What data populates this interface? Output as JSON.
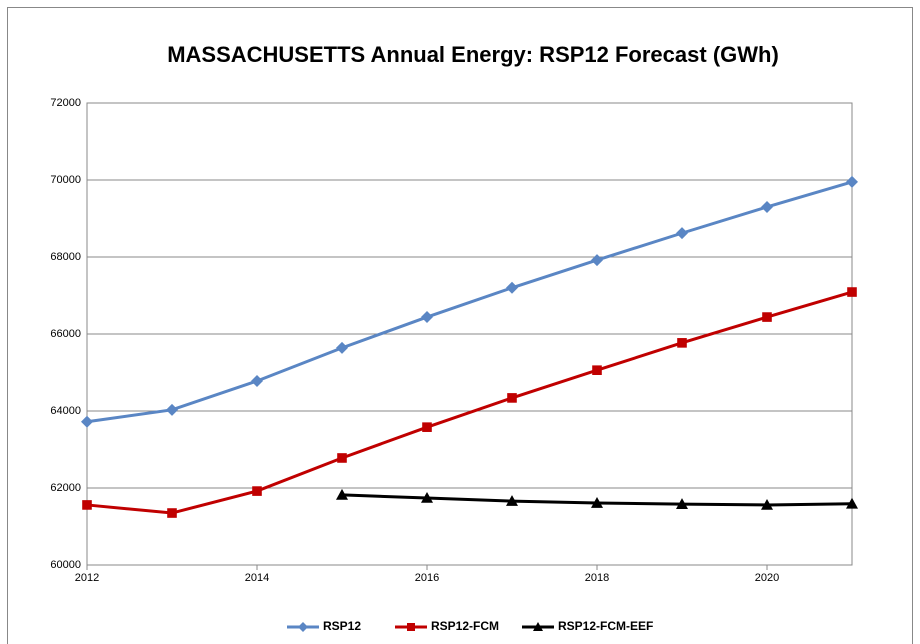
{
  "chart_data": {
    "type": "line",
    "title": "MASSACHUSETTS Annual Energy: RSP12 Forecast (GWh)",
    "x": [
      2012,
      2013,
      2014,
      2015,
      2016,
      2017,
      2018,
      2019,
      2020,
      2021
    ],
    "series": [
      {
        "name": "RSP12",
        "color": "#5a86c4",
        "marker": "diamond",
        "values": [
          63720,
          64030,
          64780,
          65640,
          66440,
          67200,
          67920,
          68620,
          69300,
          69950
        ]
      },
      {
        "name": "RSP12-FCM",
        "color": "#c00000",
        "marker": "square",
        "values": [
          61560,
          61350,
          61920,
          62780,
          63580,
          64340,
          65060,
          65770,
          66440,
          67090
        ]
      },
      {
        "name": "RSP12-FCM-EEF",
        "color": "#000000",
        "marker": "triangle",
        "values": [
          null,
          null,
          null,
          61820,
          61740,
          61660,
          61610,
          61580,
          61560,
          61590
        ]
      }
    ],
    "xlim": [
      2012,
      2021
    ],
    "xticks": [
      2012,
      2014,
      2016,
      2018,
      2020
    ],
    "ylim": [
      60000,
      72000
    ],
    "yticks": [
      60000,
      62000,
      64000,
      66000,
      68000,
      70000,
      72000
    ],
    "grid": true,
    "legend": "bottom"
  }
}
